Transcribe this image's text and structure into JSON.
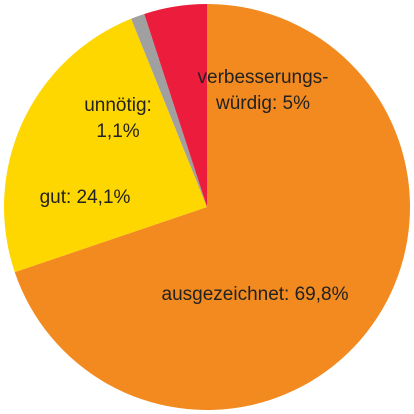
{
  "chart_data": {
    "type": "pie",
    "start_angle_deg": 0,
    "direction": "clockwise",
    "slices": [
      {
        "label": "ausgezeichnet: 69,8%",
        "label_lines": [
          "ausgezeichnet: 69,8%"
        ],
        "category": "ausgezeichnet",
        "value": 69.8,
        "color": "#F28A20"
      },
      {
        "label": "gut: 24,1%",
        "label_lines": [
          "gut: 24,1%"
        ],
        "category": "gut",
        "value": 24.1,
        "color": "#FFD700"
      },
      {
        "label": "unnötig: 1,1%",
        "label_lines": [
          "unnötig:",
          "1,1%"
        ],
        "category": "unnötig",
        "value": 1.1,
        "color": "#A0A0A0"
      },
      {
        "label": "verbesserungswürdig: 5%",
        "label_lines": [
          "verbesserungs-",
          "würdig: 5%"
        ],
        "category": "verbesserungswürdig",
        "value": 5,
        "color": "#EC1C3C"
      }
    ]
  }
}
